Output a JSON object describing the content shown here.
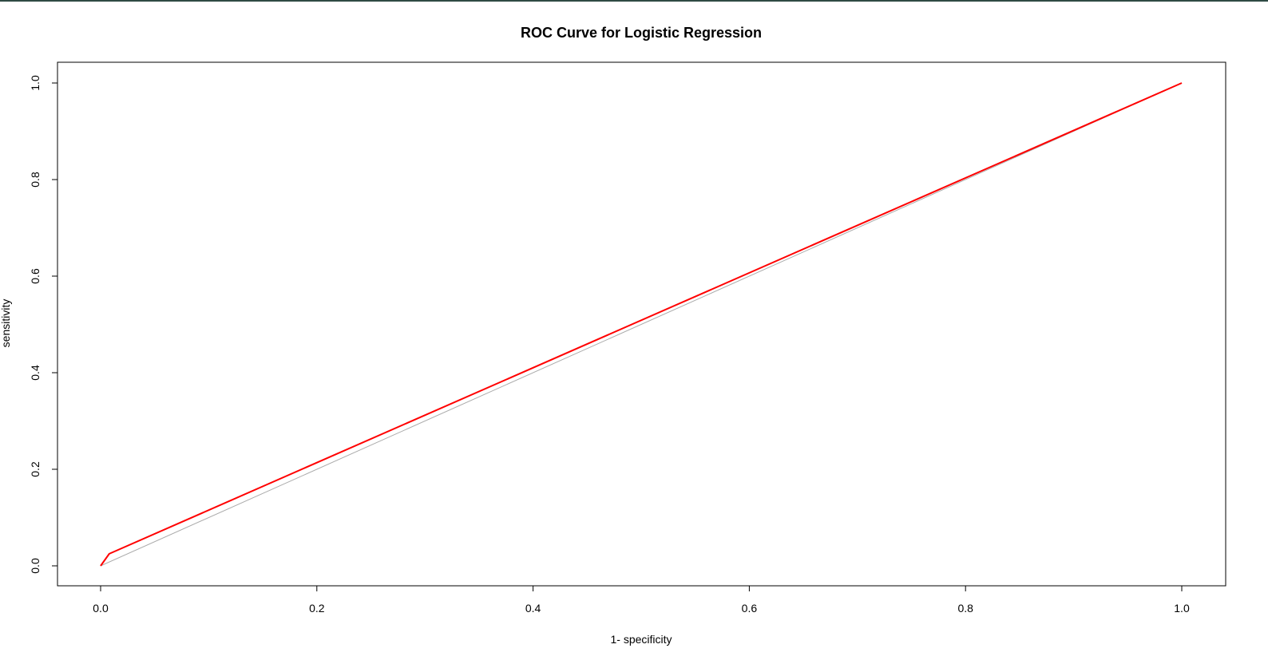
{
  "chart_data": {
    "type": "line",
    "title": "ROC Curve for Logistic Regression",
    "xlabel": "1- specificity",
    "ylabel": "sensitivity",
    "xlim": [
      0.0,
      1.0
    ],
    "ylim": [
      0.0,
      1.0
    ],
    "x_ticks": [
      "0.0",
      "0.2",
      "0.4",
      "0.6",
      "0.8",
      "1.0"
    ],
    "y_ticks": [
      "0.0",
      "0.2",
      "0.4",
      "0.6",
      "0.8",
      "1.0"
    ],
    "grid": false,
    "series": [
      {
        "role": "reference-diagonal",
        "color": "#aaaaaa",
        "x": [
          0.0,
          1.0
        ],
        "y": [
          0.0,
          1.0
        ]
      },
      {
        "role": "roc-curve",
        "color": "#ff0000",
        "x": [
          0.0,
          0.008,
          1.0
        ],
        "y": [
          0.0,
          0.025,
          1.0
        ]
      }
    ]
  }
}
